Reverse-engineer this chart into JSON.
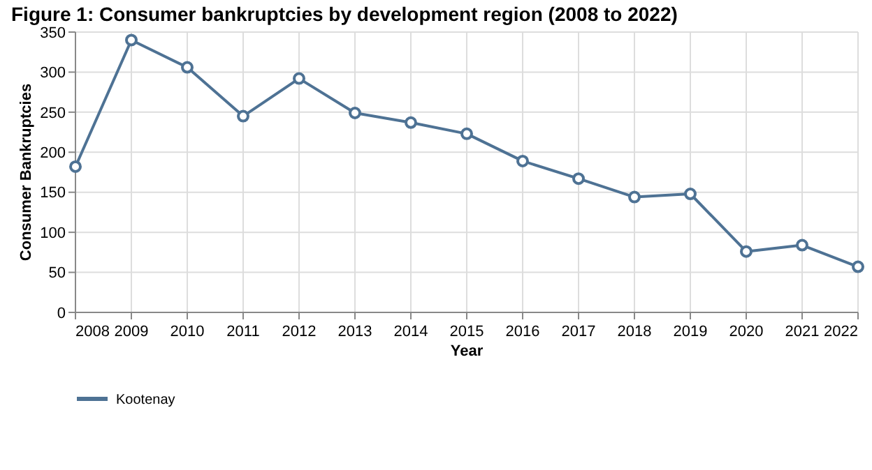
{
  "chart_data": {
    "type": "line",
    "title": "Figure 1: Consumer bankruptcies by development region (2008 to 2022)",
    "xlabel": "Year",
    "ylabel": "Consumer Bankruptcies",
    "x": [
      2008,
      2009,
      2010,
      2011,
      2012,
      2013,
      2014,
      2015,
      2016,
      2017,
      2018,
      2019,
      2020,
      2021,
      2022
    ],
    "series": [
      {
        "name": "Kootenay",
        "color": "#4e7294",
        "values": [
          182,
          340,
          306,
          245,
          292,
          249,
          237,
          223,
          189,
          167,
          144,
          148,
          76,
          84,
          57
        ]
      }
    ],
    "xlim": [
      2008,
      2022
    ],
    "xticks": [
      2008,
      2009,
      2010,
      2011,
      2012,
      2013,
      2014,
      2015,
      2016,
      2017,
      2018,
      2019,
      2020,
      2021,
      2022
    ],
    "ylim": [
      0,
      350
    ],
    "yticks": [
      0,
      50,
      100,
      150,
      200,
      250,
      300,
      350
    ],
    "grid": true,
    "legend": "bottom left",
    "marker": "circle",
    "line_style": "solid"
  }
}
